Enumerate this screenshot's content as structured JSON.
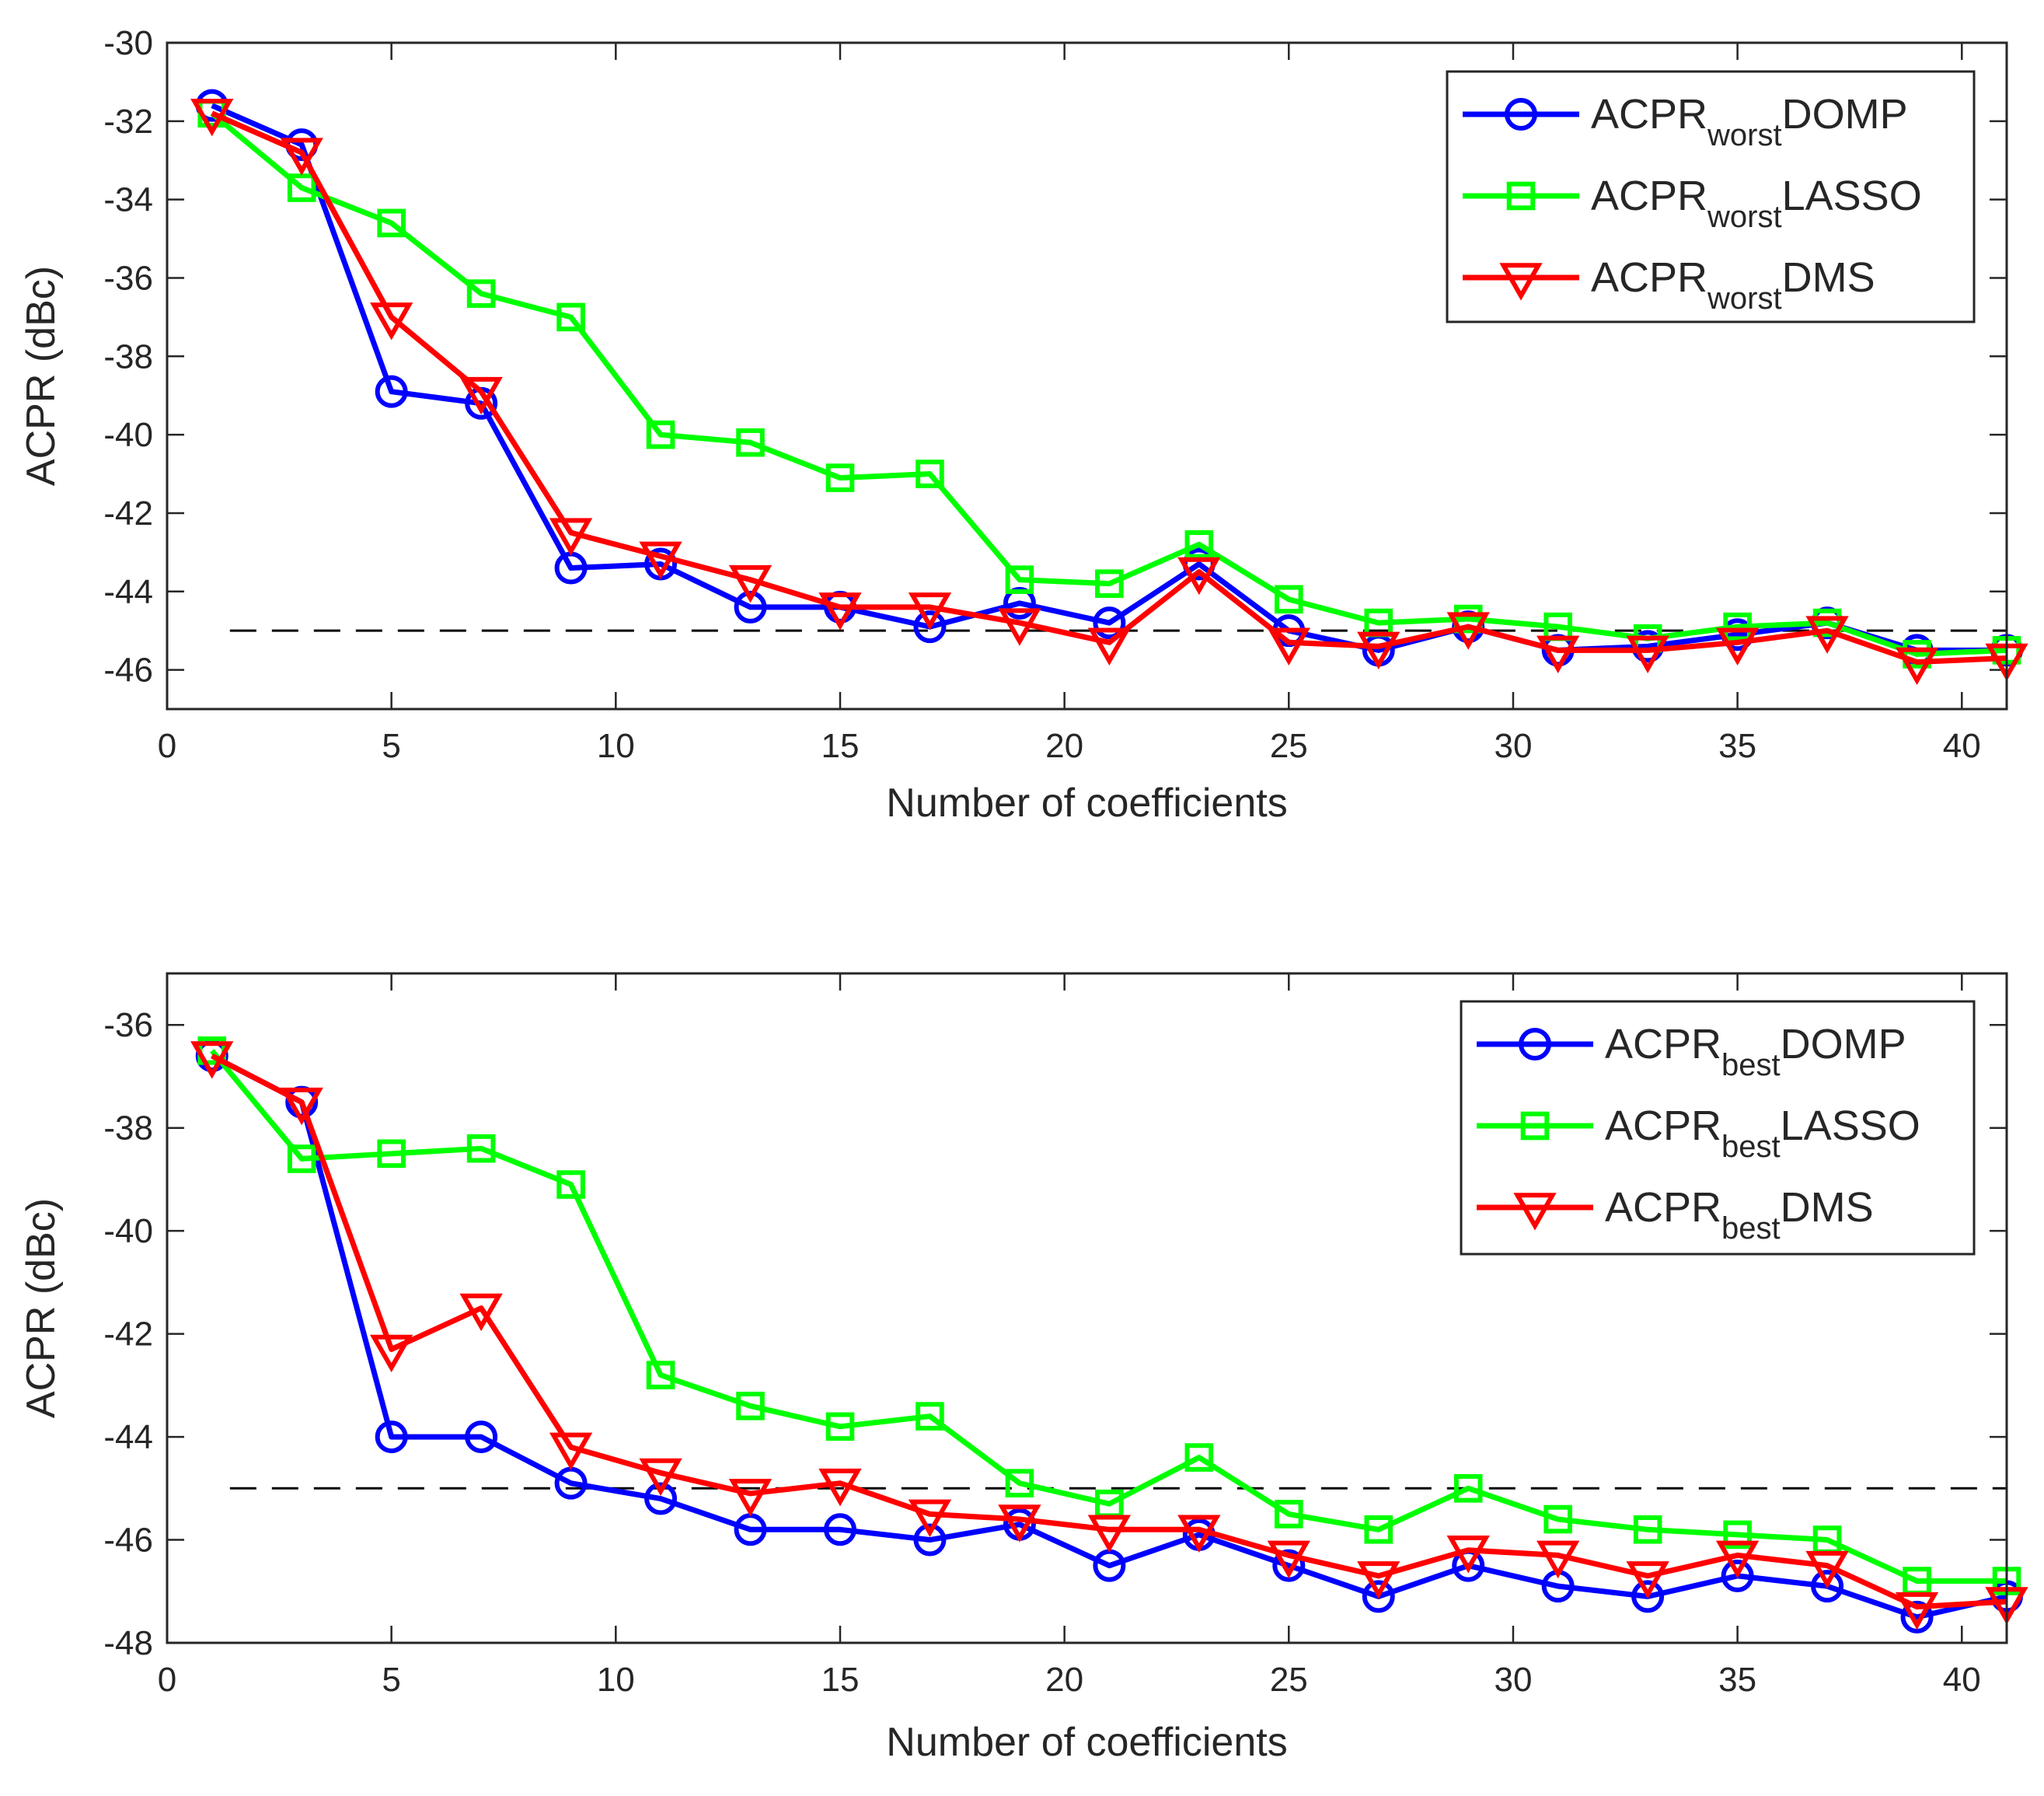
{
  "chart_data": [
    {
      "type": "line",
      "title": "",
      "xlabel": "Number of coefficients",
      "ylabel": "ACPR (dBc)",
      "xlim": [
        0,
        41
      ],
      "ylim": [
        -47,
        -30
      ],
      "xticks": [
        0,
        5,
        10,
        15,
        20,
        25,
        30,
        35,
        40
      ],
      "yticks": [
        -46,
        -44,
        -42,
        -40,
        -38,
        -36,
        -34,
        -32,
        -30
      ],
      "xtick_labels": [
        "0",
        "5",
        "10",
        "15",
        "20",
        "25",
        "30",
        "35",
        "40"
      ],
      "ytick_labels": [
        "-46",
        "-44",
        "-42",
        "-40",
        "-38",
        "-36",
        "-34",
        "-32",
        "-30"
      ],
      "legend_position": "top-right",
      "x": [
        1,
        3,
        5,
        7,
        9,
        11,
        13,
        15,
        17,
        19,
        21,
        23,
        25,
        27,
        29,
        31,
        33,
        35,
        37,
        39,
        41
      ],
      "reference_line": {
        "y": -45,
        "style": "dashed",
        "color": "#000000"
      },
      "series": [
        {
          "name": "ACPR worst DOMP",
          "label_main": "ACPR",
          "label_sub": "worst",
          "label_suffix": "DOMP",
          "color": "#0000ff",
          "marker": "circle",
          "values": [
            -31.6,
            -32.6,
            -38.9,
            -39.2,
            -43.4,
            -43.3,
            -44.4,
            -44.4,
            -44.9,
            -44.3,
            -44.8,
            -43.3,
            -45.0,
            -45.5,
            -44.9,
            -45.5,
            -45.4,
            -45.1,
            -44.8,
            -45.5,
            -45.5
          ]
        },
        {
          "name": "ACPR worst LASSO",
          "label_main": "ACPR",
          "label_sub": "worst",
          "label_suffix": "LASSO",
          "color": "#00ff00",
          "marker": "square",
          "values": [
            -31.8,
            -33.7,
            -34.6,
            -36.4,
            -37.0,
            -40.0,
            -40.2,
            -41.1,
            -41.0,
            -43.7,
            -43.8,
            -42.8,
            -44.2,
            -44.8,
            -44.7,
            -44.9,
            -45.2,
            -44.9,
            -44.8,
            -45.6,
            -45.5
          ]
        },
        {
          "name": "ACPR worst DMS",
          "label_main": "ACPR",
          "label_sub": "worst",
          "label_suffix": "DMS",
          "color": "#ff0000",
          "marker": "triangle-down",
          "values": [
            -31.8,
            -32.8,
            -37.0,
            -38.9,
            -42.5,
            -43.1,
            -43.7,
            -44.4,
            -44.4,
            -44.8,
            -45.3,
            -43.5,
            -45.3,
            -45.4,
            -44.9,
            -45.5,
            -45.5,
            -45.3,
            -45.0,
            -45.8,
            -45.7
          ]
        }
      ]
    },
    {
      "type": "line",
      "title": "",
      "xlabel": "Number of coefficients",
      "ylabel": "ACPR (dBc)",
      "xlim": [
        0,
        41
      ],
      "ylim": [
        -48,
        -35
      ],
      "xticks": [
        0,
        5,
        10,
        15,
        20,
        25,
        30,
        35,
        40
      ],
      "yticks": [
        -48,
        -46,
        -44,
        -42,
        -40,
        -38,
        -36
      ],
      "xtick_labels": [
        "0",
        "5",
        "10",
        "15",
        "20",
        "25",
        "30",
        "35",
        "40"
      ],
      "ytick_labels": [
        "-48",
        "-46",
        "-44",
        "-42",
        "-40",
        "-38",
        "-36"
      ],
      "legend_position": "top-right",
      "x": [
        1,
        3,
        5,
        7,
        9,
        11,
        13,
        15,
        17,
        19,
        21,
        23,
        25,
        27,
        29,
        31,
        33,
        35,
        37,
        39,
        41
      ],
      "reference_line": {
        "y": -45,
        "style": "dashed",
        "color": "#000000"
      },
      "series": [
        {
          "name": "ACPR best DOMP",
          "label_main": "ACPR",
          "label_sub": "best",
          "label_suffix": "DOMP",
          "color": "#0000ff",
          "marker": "circle",
          "values": [
            -36.6,
            -37.5,
            -44.0,
            -44.0,
            -44.9,
            -45.2,
            -45.8,
            -45.8,
            -46.0,
            -45.7,
            -46.5,
            -45.9,
            -46.5,
            -47.1,
            -46.5,
            -46.9,
            -47.1,
            -46.7,
            -46.9,
            -47.5,
            -47.1
          ]
        },
        {
          "name": "ACPR best LASSO",
          "label_main": "ACPR",
          "label_sub": "best",
          "label_suffix": "LASSO",
          "color": "#00ff00",
          "marker": "square",
          "values": [
            -36.5,
            -38.6,
            -38.5,
            -38.4,
            -39.1,
            -42.8,
            -43.4,
            -43.8,
            -43.6,
            -44.9,
            -45.3,
            -44.4,
            -45.5,
            -45.8,
            -45.0,
            -45.6,
            -45.8,
            -45.9,
            -46.0,
            -46.8,
            -46.8
          ]
        },
        {
          "name": "ACPR best DMS",
          "label_main": "ACPR",
          "label_sub": "best",
          "label_suffix": "DMS",
          "color": "#ff0000",
          "marker": "triangle-down",
          "values": [
            -36.6,
            -37.5,
            -42.3,
            -41.5,
            -44.2,
            -44.7,
            -45.1,
            -44.9,
            -45.5,
            -45.6,
            -45.8,
            -45.8,
            -46.3,
            -46.7,
            -46.2,
            -46.3,
            -46.7,
            -46.3,
            -46.5,
            -47.3,
            -47.2
          ]
        }
      ]
    }
  ]
}
